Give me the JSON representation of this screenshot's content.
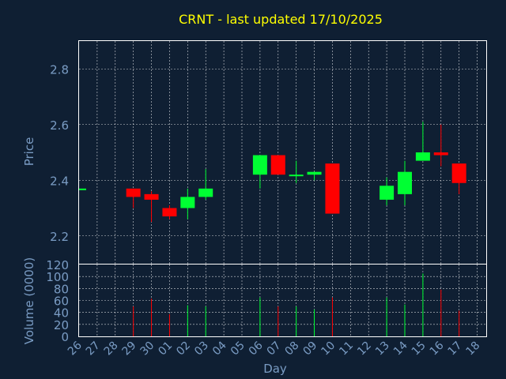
{
  "colors": {
    "background": "#0f1f33",
    "up": "#00ff33",
    "down": "#ff0000",
    "title": "#ffff00",
    "axis_text": "#7a9cc4",
    "frame": "#ffffff",
    "grid": "#ffffff"
  },
  "chart_data": [
    {
      "type": "candlestick",
      "title": "CRNT - last updated 17/10/2025",
      "ylabel": "Price",
      "ylim": [
        2.1,
        2.9
      ],
      "yticks": [
        "2.2",
        "2.4",
        "2.6",
        "2.8"
      ],
      "grid": true,
      "x": [
        "26",
        "27",
        "28",
        "29",
        "30",
        "01",
        "02",
        "03",
        "04",
        "05",
        "06",
        "07",
        "08",
        "09",
        "10",
        "11",
        "12",
        "13",
        "14",
        "15",
        "16",
        "17",
        "18"
      ],
      "candles": [
        {
          "x": "26",
          "open": 2.37,
          "high": 2.37,
          "low": 2.37,
          "close": 2.37
        },
        {
          "x": "29",
          "open": 2.37,
          "high": 2.37,
          "low": 2.3,
          "close": 2.34
        },
        {
          "x": "30",
          "open": 2.35,
          "high": 2.36,
          "low": 2.25,
          "close": 2.33
        },
        {
          "x": "01",
          "open": 2.3,
          "high": 2.31,
          "low": 2.26,
          "close": 2.27
        },
        {
          "x": "02",
          "open": 2.3,
          "high": 2.37,
          "low": 2.26,
          "close": 2.34
        },
        {
          "x": "03",
          "open": 2.34,
          "high": 2.44,
          "low": 2.33,
          "close": 2.37
        },
        {
          "x": "06",
          "open": 2.42,
          "high": 2.49,
          "low": 2.37,
          "close": 2.49
        },
        {
          "x": "07",
          "open": 2.49,
          "high": 2.49,
          "low": 2.42,
          "close": 2.42
        },
        {
          "x": "08",
          "open": 2.42,
          "high": 2.47,
          "low": 2.39,
          "close": 2.42
        },
        {
          "x": "09",
          "open": 2.42,
          "high": 2.43,
          "low": 2.4,
          "close": 2.43
        },
        {
          "x": "10",
          "open": 2.46,
          "high": 2.46,
          "low": 2.28,
          "close": 2.28
        },
        {
          "x": "13",
          "open": 2.33,
          "high": 2.41,
          "low": 2.31,
          "close": 2.38
        },
        {
          "x": "14",
          "open": 2.35,
          "high": 2.47,
          "low": 2.31,
          "close": 2.43
        },
        {
          "x": "15",
          "open": 2.47,
          "high": 2.61,
          "low": 2.47,
          "close": 2.5
        },
        {
          "x": "16",
          "open": 2.5,
          "high": 2.6,
          "low": 2.45,
          "close": 2.49
        },
        {
          "x": "17",
          "open": 2.46,
          "high": 2.46,
          "low": 2.35,
          "close": 2.39
        }
      ]
    },
    {
      "type": "bar",
      "ylabel": "Volume (0000)",
      "xlabel": "Day",
      "ylim": [
        0,
        120
      ],
      "yticks": [
        "0",
        "20",
        "40",
        "60",
        "80",
        "100",
        "120"
      ],
      "grid": true,
      "categories": [
        "26",
        "27",
        "28",
        "29",
        "30",
        "01",
        "02",
        "03",
        "04",
        "05",
        "06",
        "07",
        "08",
        "09",
        "10",
        "11",
        "12",
        "13",
        "14",
        "15",
        "16",
        "17",
        "18"
      ],
      "bars": [
        {
          "x": "29",
          "value": 50,
          "dir": "down"
        },
        {
          "x": "30",
          "value": 63,
          "dir": "down"
        },
        {
          "x": "01",
          "value": 37,
          "dir": "down"
        },
        {
          "x": "02",
          "value": 52,
          "dir": "up"
        },
        {
          "x": "03",
          "value": 50,
          "dir": "up"
        },
        {
          "x": "06",
          "value": 65,
          "dir": "up"
        },
        {
          "x": "07",
          "value": 50,
          "dir": "down"
        },
        {
          "x": "08",
          "value": 50,
          "dir": "up"
        },
        {
          "x": "09",
          "value": 45,
          "dir": "up"
        },
        {
          "x": "10",
          "value": 65,
          "dir": "down"
        },
        {
          "x": "13",
          "value": 65,
          "dir": "up"
        },
        {
          "x": "14",
          "value": 53,
          "dir": "up"
        },
        {
          "x": "15",
          "value": 105,
          "dir": "up"
        },
        {
          "x": "16",
          "value": 78,
          "dir": "down"
        },
        {
          "x": "17",
          "value": 43,
          "dir": "down"
        }
      ]
    }
  ]
}
